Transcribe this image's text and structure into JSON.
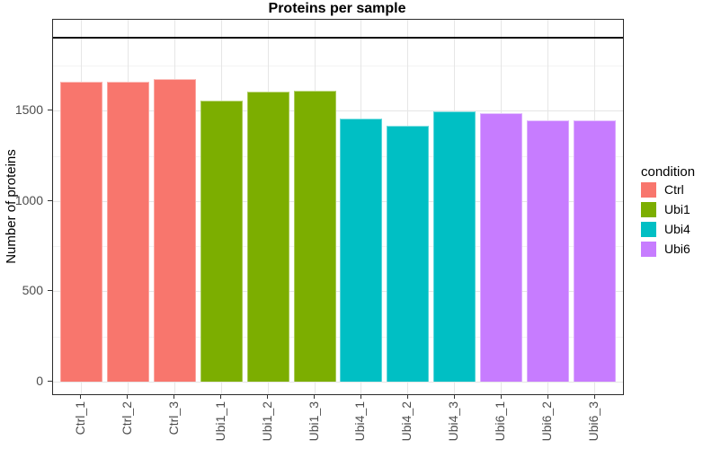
{
  "title": "Proteins per sample",
  "y_axis": {
    "label": "Number of proteins",
    "ticks": [
      0,
      500,
      1000,
      1500
    ]
  },
  "x_axis": {
    "labels": [
      "Ctrl_1",
      "Ctrl_2",
      "Ctrl_3",
      "Ubi1_1",
      "Ubi1_2",
      "Ubi1_3",
      "Ubi4_1",
      "Ubi4_2",
      "Ubi4_3",
      "Ubi6_1",
      "Ubi6_2",
      "Ubi6_3"
    ]
  },
  "legend": {
    "title": "condition",
    "items": [
      {
        "label": "Ctrl",
        "color": "#F8766D"
      },
      {
        "label": "Ubi1",
        "color": "#7CAE00"
      },
      {
        "label": "Ubi4",
        "color": "#00BFC4"
      },
      {
        "label": "Ubi6",
        "color": "#C77CFF"
      }
    ]
  },
  "chart_data": {
    "type": "bar",
    "title": "Proteins per sample",
    "xlabel": "",
    "ylabel": "Number of proteins",
    "categories": [
      "Ctrl_1",
      "Ctrl_2",
      "Ctrl_3",
      "Ubi1_1",
      "Ubi1_2",
      "Ubi1_3",
      "Ubi4_1",
      "Ubi4_2",
      "Ubi4_3",
      "Ubi6_1",
      "Ubi6_2",
      "Ubi6_3"
    ],
    "values": [
      1662,
      1660,
      1677,
      1559,
      1607,
      1612,
      1458,
      1419,
      1499,
      1489,
      1449,
      1449
    ],
    "conditions": [
      "Ctrl",
      "Ctrl",
      "Ctrl",
      "Ubi1",
      "Ubi1",
      "Ubi1",
      "Ubi4",
      "Ubi4",
      "Ubi4",
      "Ubi6",
      "Ubi6",
      "Ubi6"
    ],
    "condition_colors": {
      "Ctrl": "#F8766D",
      "Ubi1": "#7CAE00",
      "Ubi4": "#00BFC4",
      "Ubi6": "#C77CFF"
    },
    "hline_value": 1905,
    "yticks": [
      0,
      500,
      1000,
      1500
    ],
    "minor_yticks": [
      250,
      750,
      1250,
      1750
    ],
    "ylim": [
      -70,
      2005
    ],
    "grid": true,
    "legend_position": "right",
    "legend_title": "condition"
  }
}
